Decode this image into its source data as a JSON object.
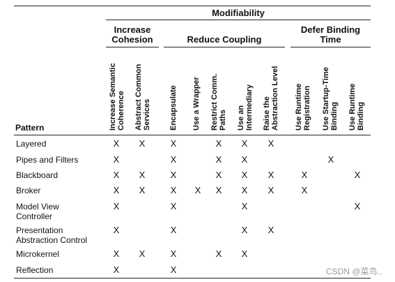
{
  "table": {
    "title": "Modifiability",
    "groups": [
      {
        "label_lines": [
          "Increase",
          "Cohesion"
        ]
      },
      {
        "label_lines": [
          "Reduce Coupling"
        ]
      },
      {
        "label_lines": [
          "Defer Binding",
          "Time"
        ]
      }
    ],
    "pattern_header": "Pattern",
    "columns": [
      {
        "lines": [
          "Increase Semantic",
          "Coherence"
        ]
      },
      {
        "lines": [
          "Abstract Common",
          "Services"
        ]
      },
      {
        "lines": [
          "Encapsulate"
        ]
      },
      {
        "lines": [
          "Use a Wrapper"
        ]
      },
      {
        "lines": [
          "Restrict Comm.",
          "Paths"
        ]
      },
      {
        "lines": [
          "Use an",
          "Intermediary"
        ]
      },
      {
        "lines": [
          "Raise the",
          "Abstraction Level"
        ]
      },
      {
        "lines": [
          "Use Runtime",
          "Registration"
        ]
      },
      {
        "lines": [
          "Use Startup-Time",
          "Binding"
        ]
      },
      {
        "lines": [
          "Use Runtime",
          "Binding"
        ]
      }
    ],
    "mark_symbol": "X",
    "rows": [
      {
        "label_lines": [
          "Layered"
        ],
        "marks": [
          1,
          1,
          1,
          0,
          1,
          1,
          1,
          0,
          0,
          0
        ]
      },
      {
        "label_lines": [
          "Pipes and Filters"
        ],
        "marks": [
          1,
          0,
          1,
          0,
          1,
          1,
          0,
          0,
          1,
          0
        ]
      },
      {
        "label_lines": [
          "Blackboard"
        ],
        "marks": [
          1,
          1,
          1,
          0,
          1,
          1,
          1,
          1,
          0,
          1
        ]
      },
      {
        "label_lines": [
          "Broker"
        ],
        "marks": [
          1,
          1,
          1,
          1,
          1,
          1,
          1,
          1,
          0,
          0
        ]
      },
      {
        "label_lines": [
          "Model View",
          "Controller"
        ],
        "marks": [
          1,
          0,
          1,
          0,
          0,
          1,
          0,
          0,
          0,
          1
        ]
      },
      {
        "label_lines": [
          "Presentation",
          "Abstraction Control"
        ],
        "marks": [
          1,
          0,
          1,
          0,
          0,
          1,
          1,
          0,
          0,
          0
        ]
      },
      {
        "label_lines": [
          "Microkernel"
        ],
        "marks": [
          1,
          1,
          1,
          0,
          1,
          1,
          0,
          0,
          0,
          0
        ]
      },
      {
        "label_lines": [
          "Reflection"
        ],
        "marks": [
          1,
          0,
          1,
          0,
          0,
          0,
          0,
          0,
          0,
          0
        ]
      }
    ]
  },
  "watermark": "CSDN @菜鸟.."
}
